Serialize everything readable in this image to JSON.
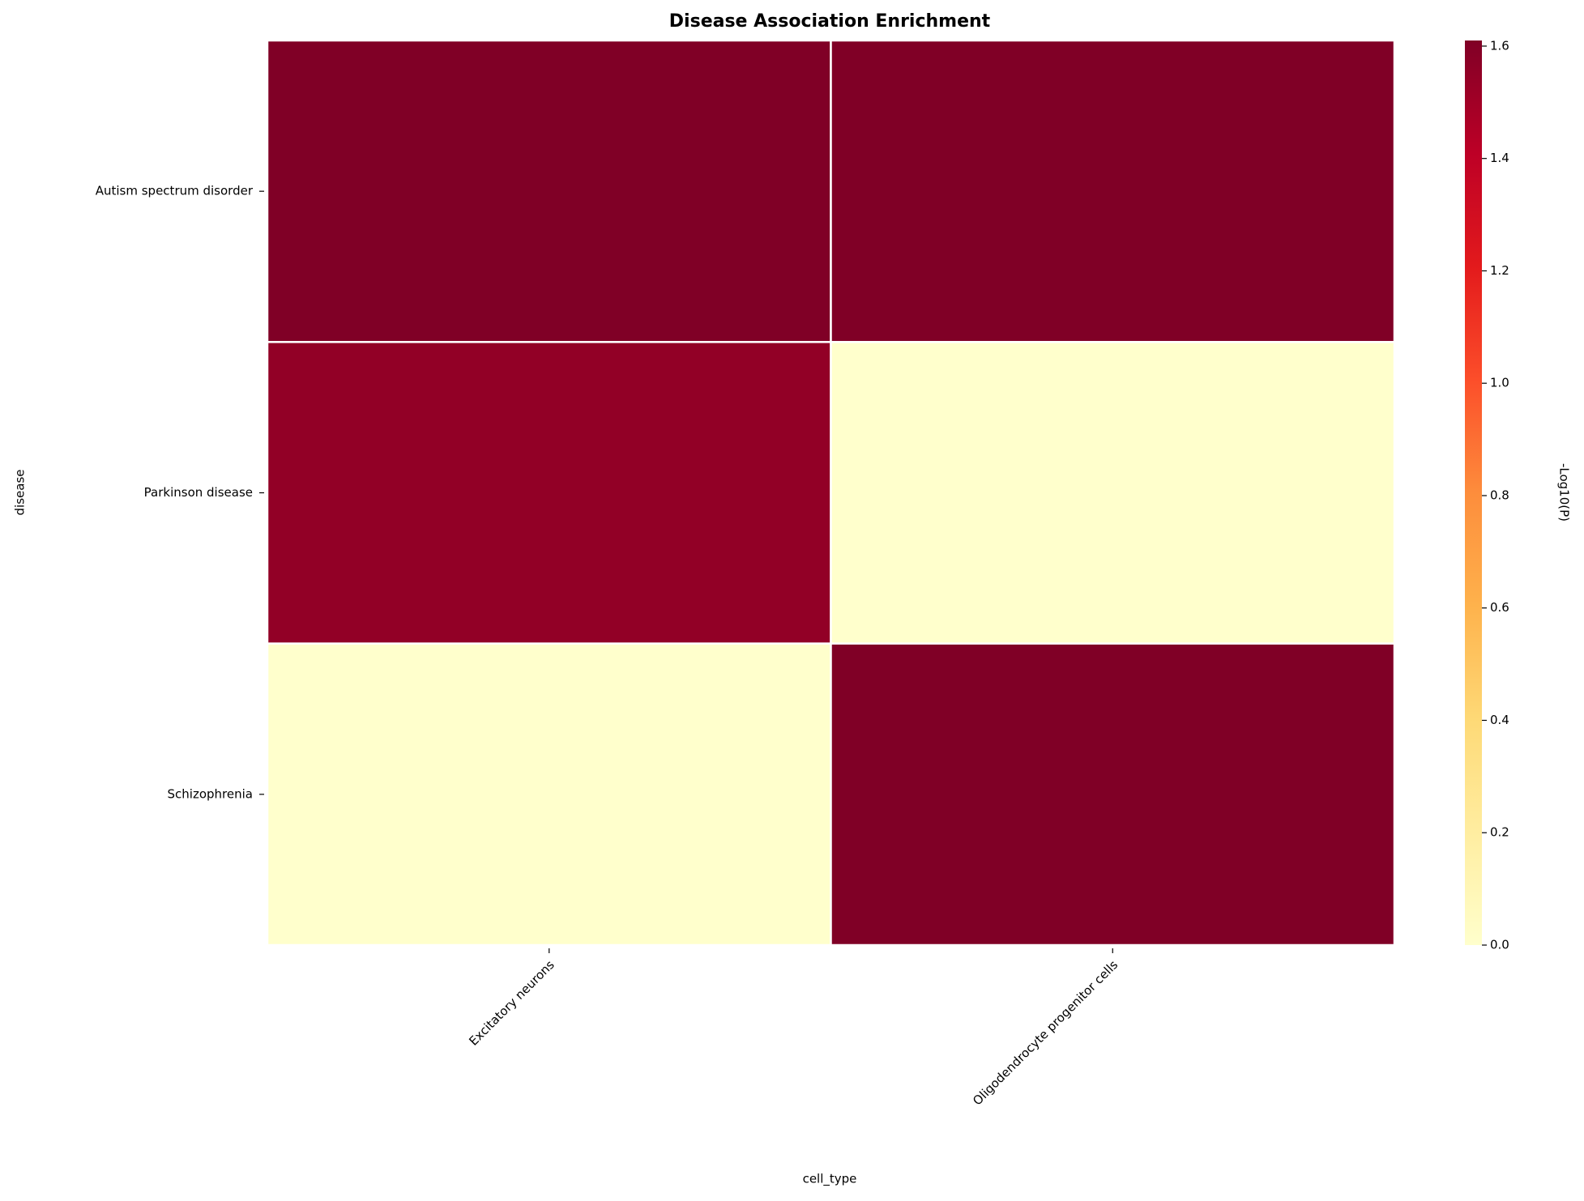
{
  "chart_data": {
    "type": "heatmap",
    "title": "Disease Association Enrichment",
    "x_label": "cell_type",
    "y_label": "disease",
    "categories": [
      "Excitatory neurons",
      "Oligodendrocyte progenitor cells"
    ],
    "rows": [
      "Autism spectrum disorder",
      "Parkinson disease",
      "Schizophrenia"
    ],
    "values": [
      [
        1.61,
        1.61
      ],
      [
        1.55,
        0
      ],
      [
        0,
        1.61
      ]
    ],
    "colormap": "YlOrRd",
    "colorbar_label": "-Log10(P)",
    "clim": [
      0,
      1.61
    ],
    "cticks": [
      0.0,
      0.2,
      0.4,
      0.6,
      0.8,
      1.0,
      1.2,
      1.4,
      1.6
    ]
  }
}
